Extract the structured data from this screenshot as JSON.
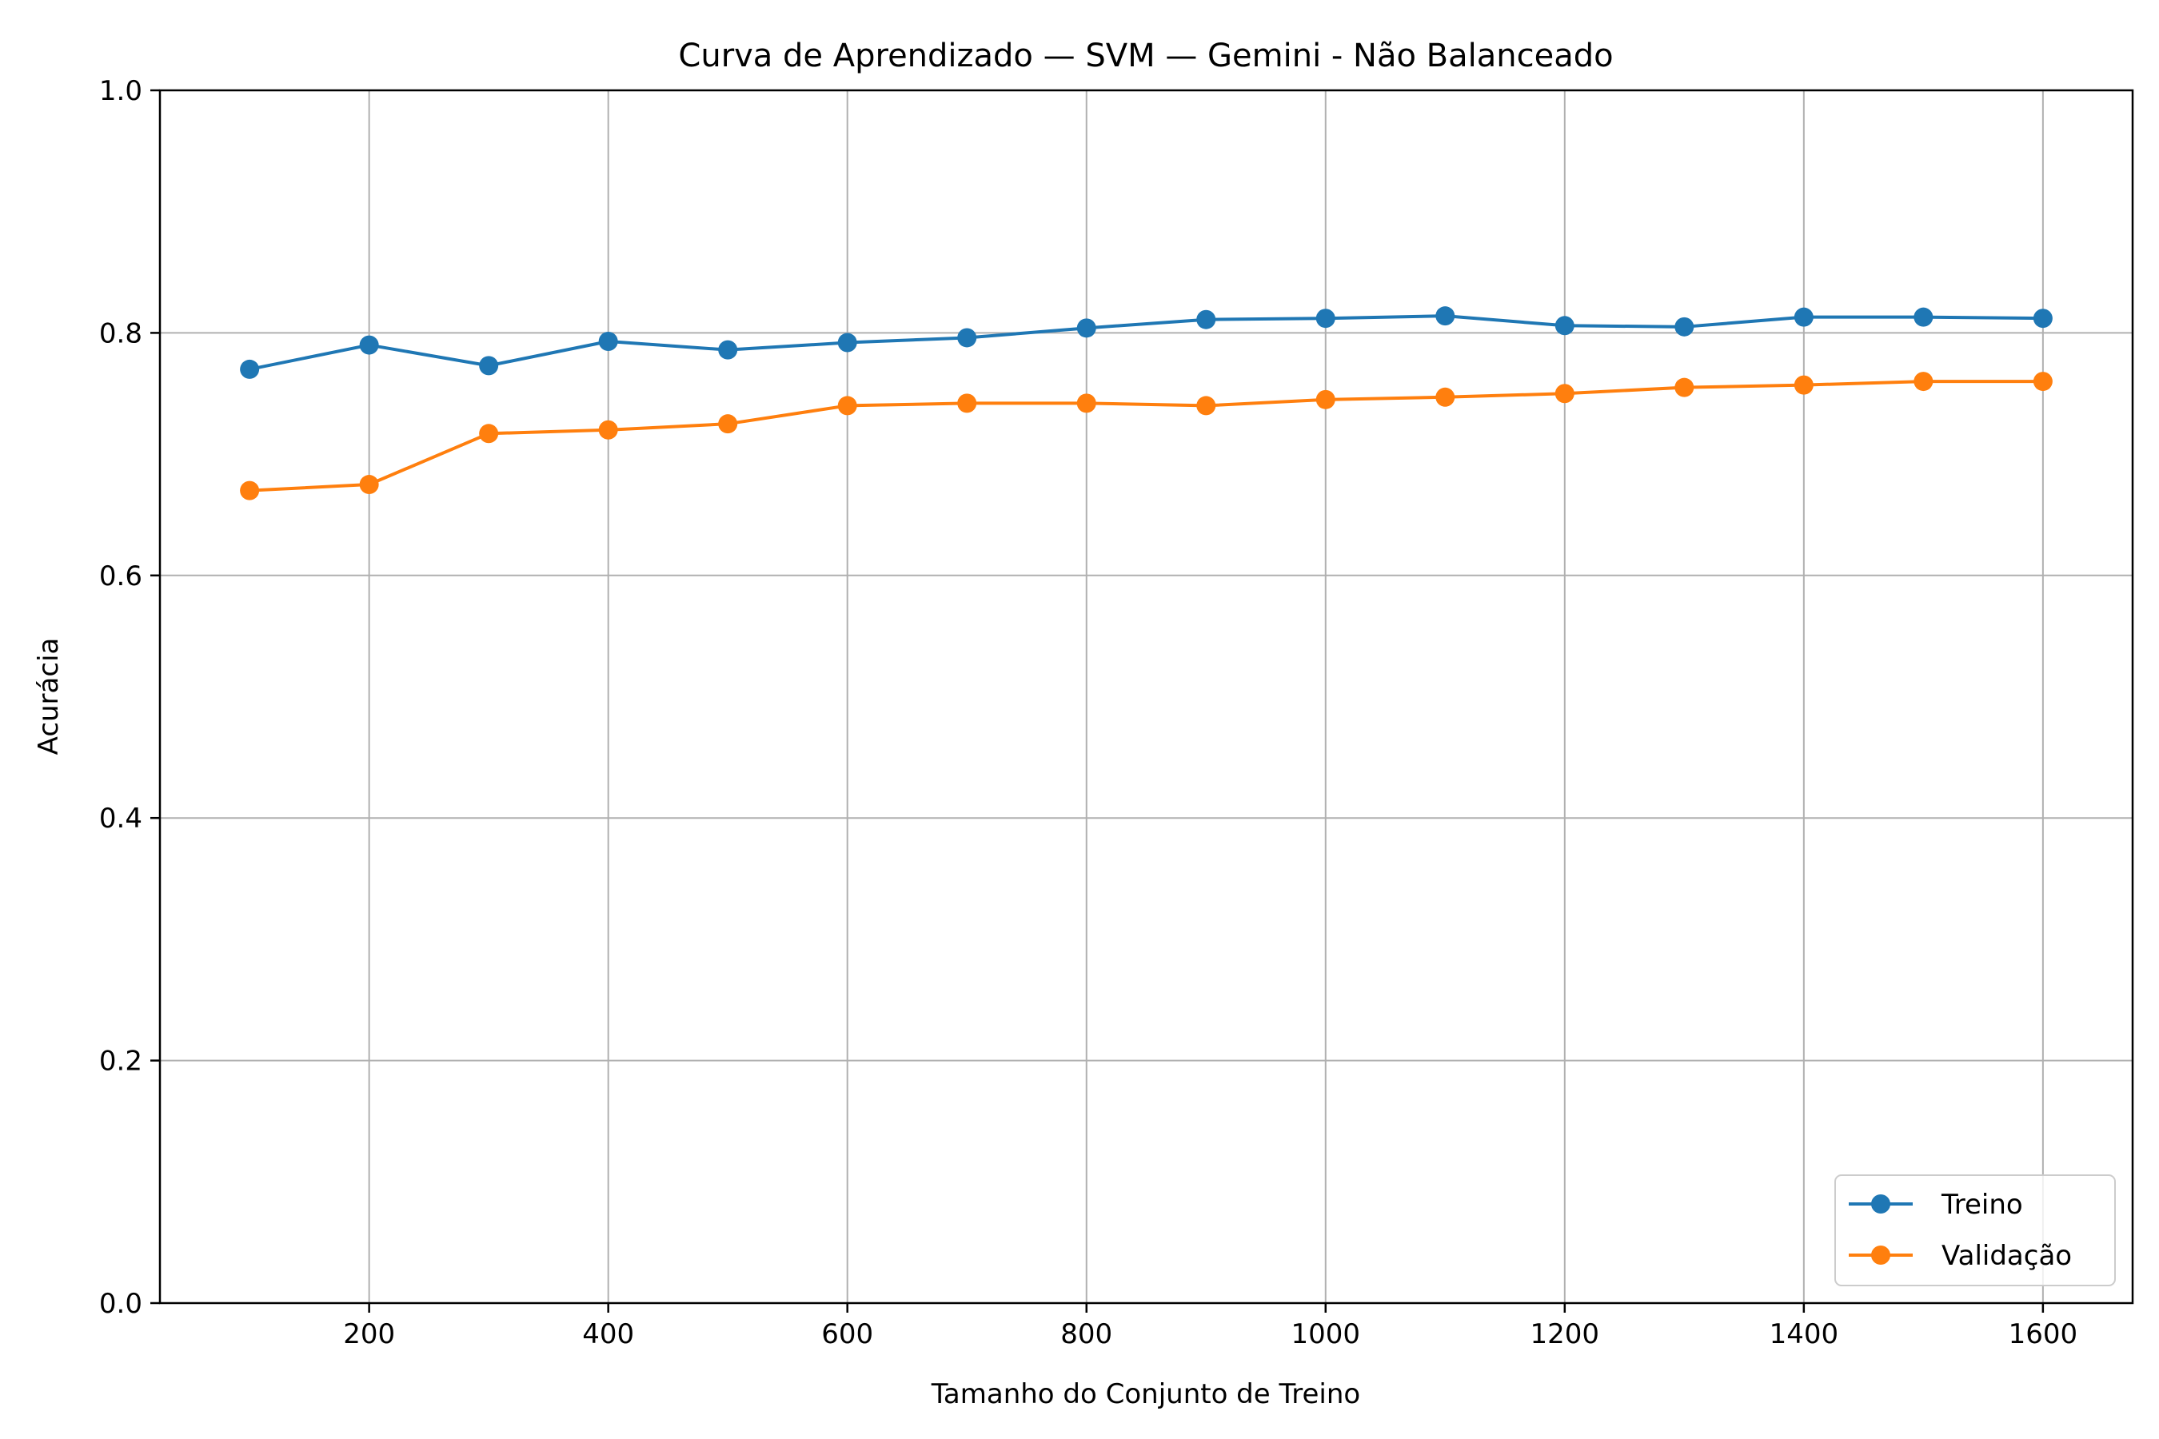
{
  "chart_data": {
    "type": "line",
    "title": "Curva de Aprendizado — SVM — Gemini - Não Balanceado",
    "xlabel": "Tamanho do Conjunto de Treino",
    "ylabel": "Acurácia",
    "xlim": [
      25,
      1675
    ],
    "ylim": [
      0.0,
      1.0
    ],
    "x_ticks": [
      200,
      400,
      600,
      800,
      1000,
      1200,
      1400,
      1600
    ],
    "y_ticks": [
      0.0,
      0.2,
      0.4,
      0.6,
      0.8,
      1.0
    ],
    "x_tick_labels": [
      "200",
      "400",
      "600",
      "800",
      "1000",
      "1200",
      "1400",
      "1600"
    ],
    "y_tick_labels": [
      "0.0",
      "0.2",
      "0.4",
      "0.6",
      "0.8",
      "1.0"
    ],
    "grid": true,
    "legend_position": "bottom-right",
    "x": [
      100,
      200,
      300,
      400,
      500,
      600,
      700,
      800,
      900,
      1000,
      1100,
      1200,
      1300,
      1400,
      1500,
      1600
    ],
    "series": [
      {
        "name": "Treino",
        "color": "#1f77b4",
        "values": [
          0.77,
          0.79,
          0.773,
          0.793,
          0.786,
          0.792,
          0.796,
          0.804,
          0.811,
          0.812,
          0.814,
          0.806,
          0.805,
          0.813,
          0.813,
          0.812
        ]
      },
      {
        "name": "Validação",
        "color": "#ff7f0e",
        "values": [
          0.67,
          0.675,
          0.717,
          0.72,
          0.725,
          0.74,
          0.742,
          0.742,
          0.74,
          0.745,
          0.747,
          0.75,
          0.755,
          0.757,
          0.76,
          0.76
        ]
      }
    ]
  }
}
